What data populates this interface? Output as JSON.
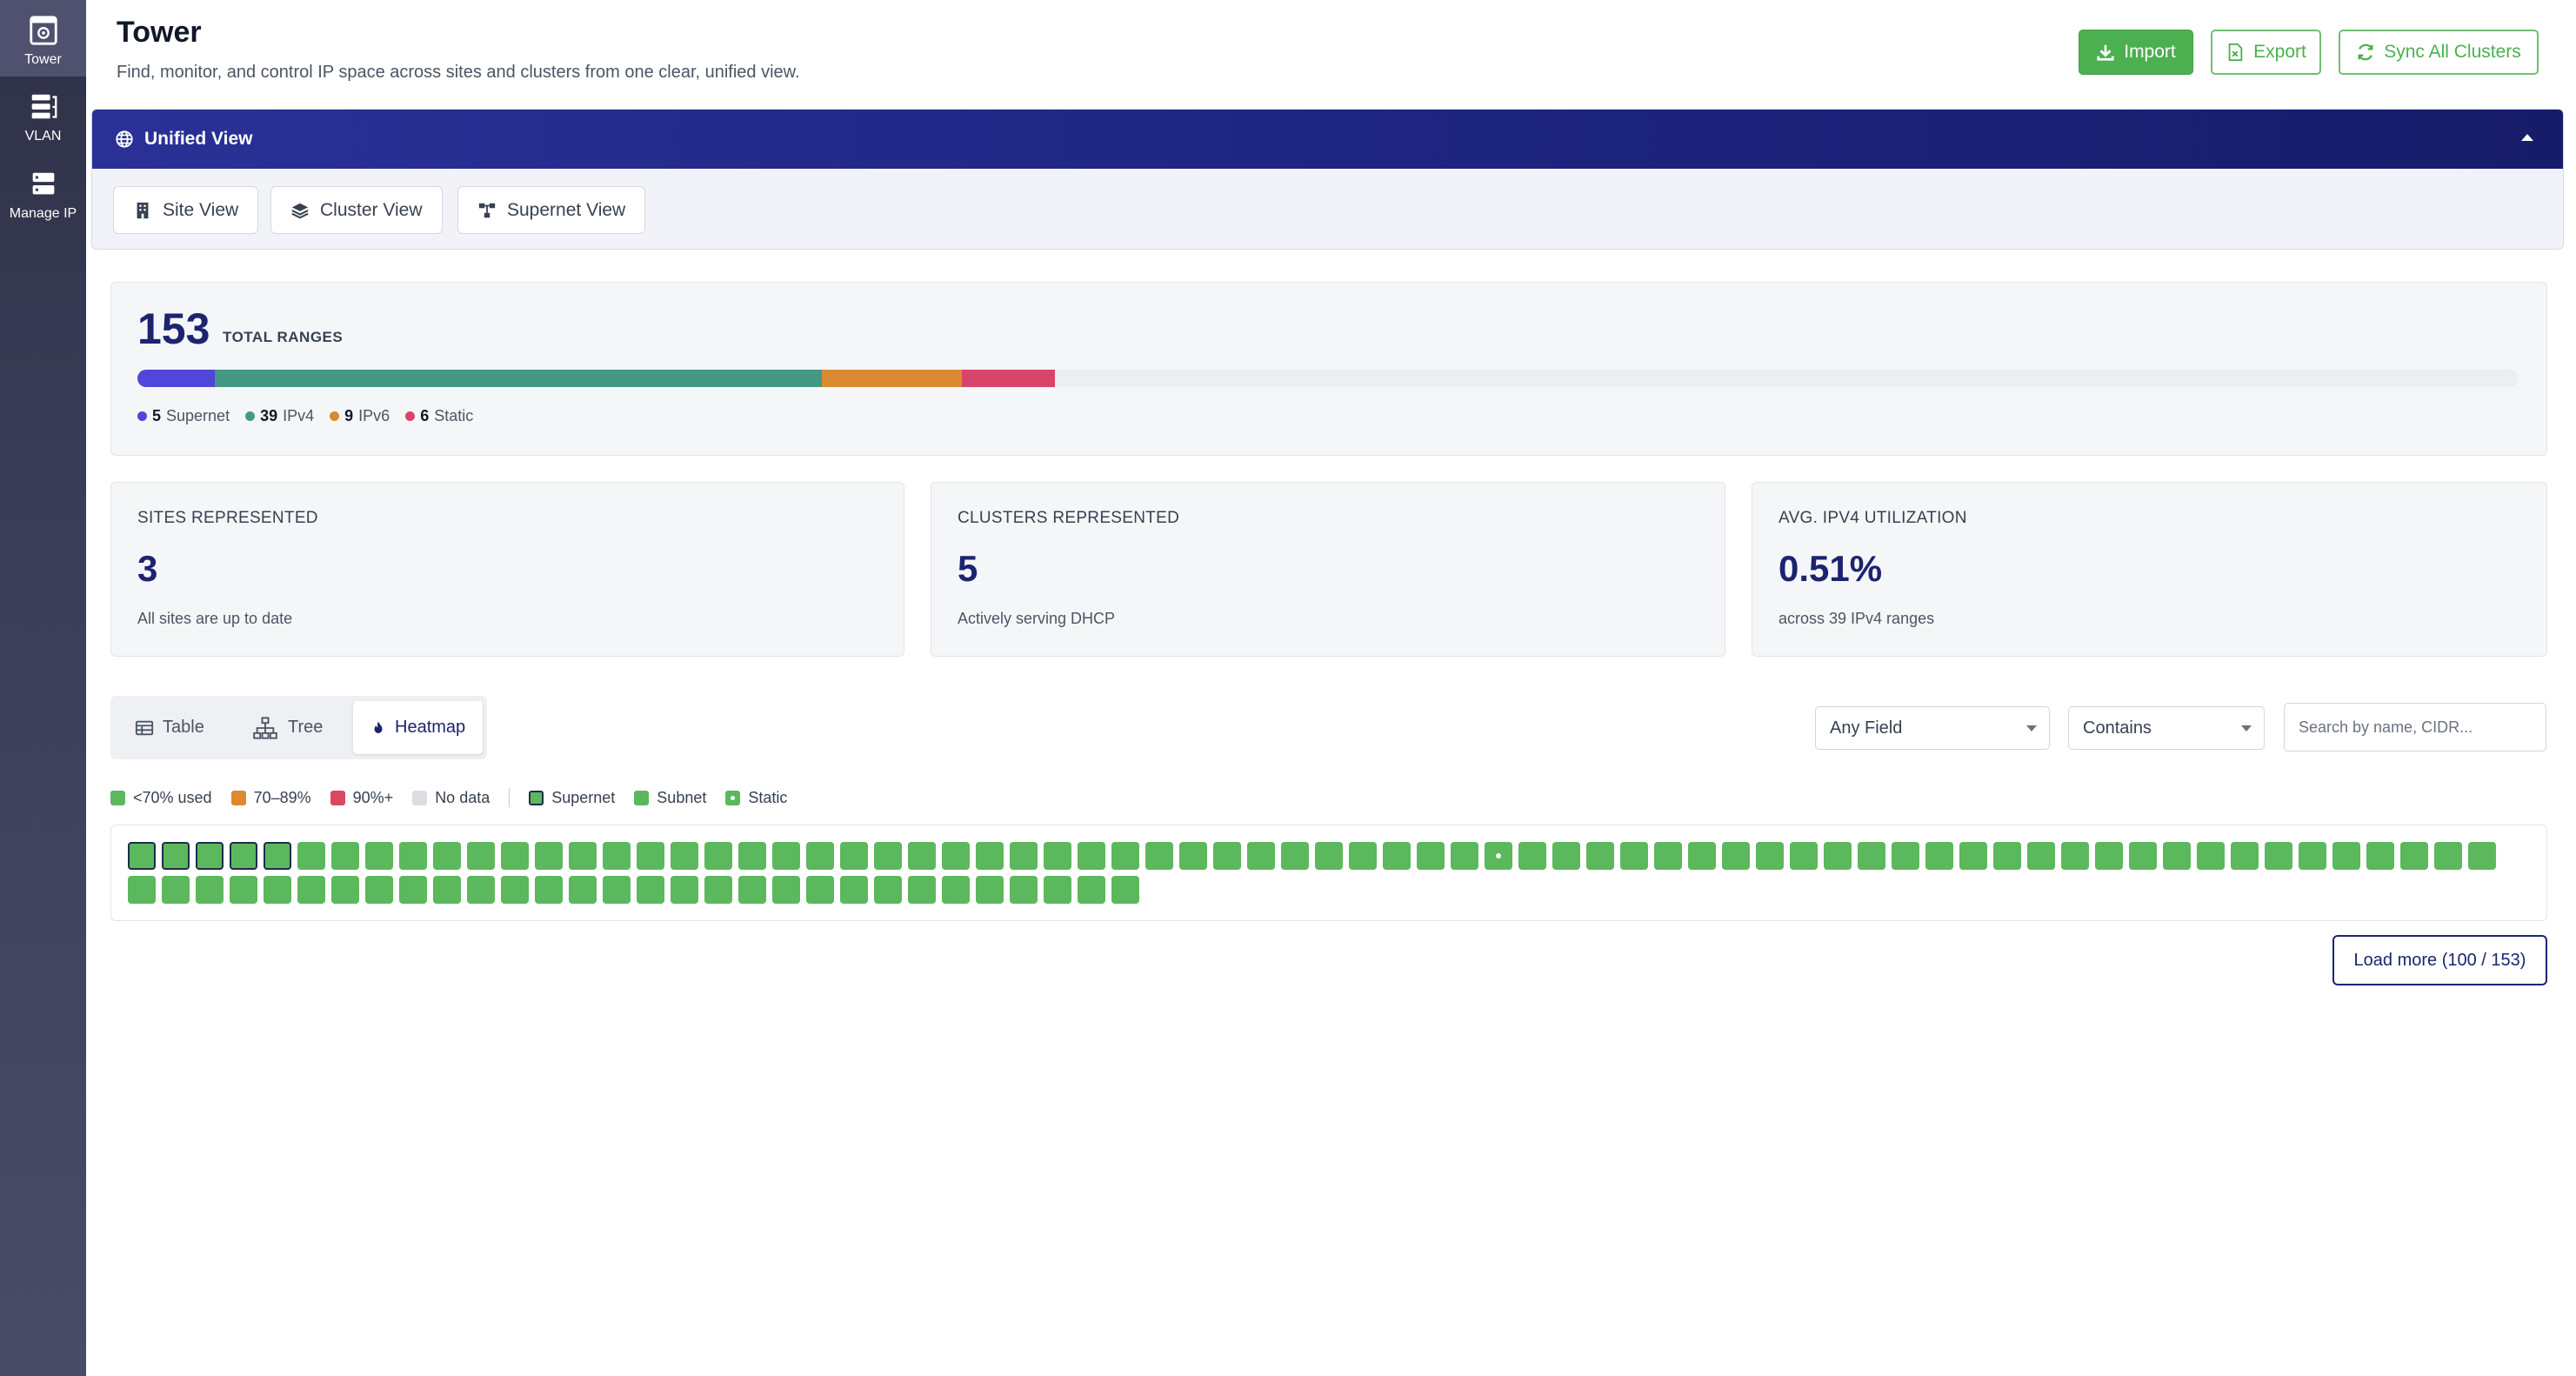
{
  "sidebar": {
    "items": [
      {
        "label": "Tower",
        "icon": "tower-icon"
      },
      {
        "label": "VLAN",
        "icon": "vlan-icon"
      },
      {
        "label": "Manage IP",
        "icon": "server-icon"
      }
    ],
    "active": "Tower"
  },
  "header": {
    "title": "Tower",
    "subtitle": "Find, monitor, and control IP space across sites and clusters from one clear, unified view.",
    "import_label": "Import",
    "export_label": "Export",
    "sync_label": "Sync All Clusters"
  },
  "unified": {
    "title": "Unified View",
    "views": [
      "Site View",
      "Cluster View",
      "Supernet View"
    ]
  },
  "totals": {
    "count": "153",
    "label": "TOTAL RANGES",
    "breakdown": [
      {
        "count": "5",
        "label": "Supernet",
        "color": "#5046d9",
        "value": 5
      },
      {
        "count": "39",
        "label": "IPv4",
        "color": "#449886",
        "value": 39
      },
      {
        "count": "9",
        "label": "IPv6",
        "color": "#d98a32",
        "value": 9
      },
      {
        "count": "6",
        "label": "Static",
        "color": "#d8456a",
        "value": 6
      }
    ],
    "total_value": 153
  },
  "stats": [
    {
      "label": "SITES REPRESENTED",
      "value": "3",
      "sub": "All sites are up to date"
    },
    {
      "label": "CLUSTERS REPRESENTED",
      "value": "5",
      "sub": "Actively serving DHCP"
    },
    {
      "label": "AVG. IPV4 UTILIZATION",
      "value": "0.51%",
      "sub": "across 39 IPv4 ranges"
    }
  ],
  "view_tabs": {
    "items": [
      "Table",
      "Tree",
      "Heatmap"
    ],
    "active": "Heatmap"
  },
  "filters": {
    "field": "Any Field",
    "operator": "Contains",
    "search_placeholder": "Search by name, CIDR..."
  },
  "heatmap": {
    "legend": {
      "low": "<70% used",
      "mid": "70–89%",
      "high": "90%+",
      "none": "No data",
      "supernet": "Supernet",
      "subnet": "Subnet",
      "static": "Static"
    },
    "colors": {
      "low": "#5cb85c",
      "mid": "#e0872f",
      "high": "#d9485f",
      "none": "#dcdde2"
    },
    "shown": 100,
    "supernet_indices": [
      0,
      1,
      2,
      3,
      4
    ],
    "static_indices": [
      40
    ],
    "load_more": "Load more (100 / 153)"
  }
}
